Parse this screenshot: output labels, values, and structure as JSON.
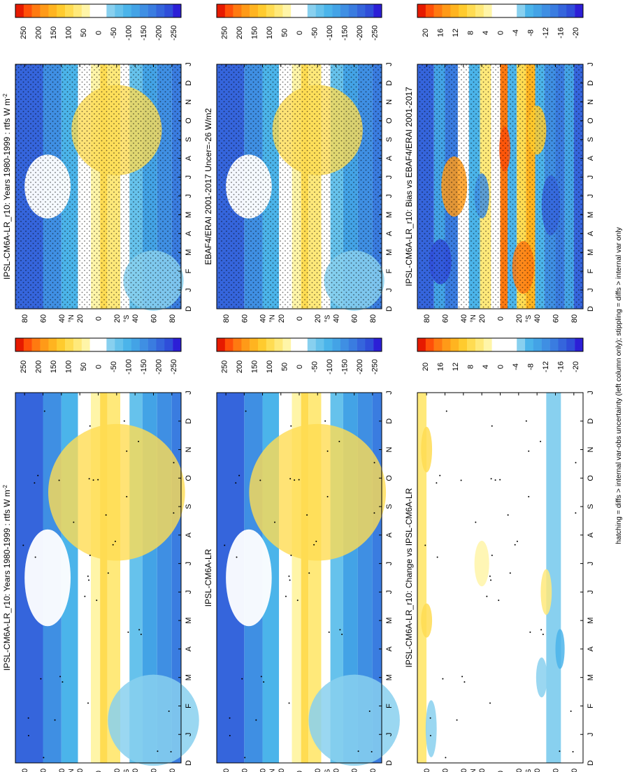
{
  "figure": {
    "footnote": "hatching = diffs > internal var-obs uncertainty (left column only); stippling = diffs > internal var only"
  },
  "colors": {
    "abs_scale": [
      "#2c1fd6",
      "#2f4ed9",
      "#3565dc",
      "#3a7ce0",
      "#3f8fe3",
      "#43a3e6",
      "#4bb4ea",
      "#66c2ec",
      "#88d0ef",
      "#ffffff",
      "#ffffff",
      "#fff5a8",
      "#ffe97a",
      "#ffdc52",
      "#ffcb2e",
      "#ffb420",
      "#ff9a18",
      "#ff7a10",
      "#ff5008",
      "#e61a00"
    ],
    "diff_scale": [
      "#2c1fd6",
      "#2f4ed9",
      "#3565dc",
      "#3a7ce0",
      "#3f8fe3",
      "#43a3e6",
      "#4bb4ea",
      "#88d0ef",
      "#ffffff",
      "#ffffff",
      "#ffffff",
      "#fff5a8",
      "#ffe97a",
      "#ffdc52",
      "#ffcb2e",
      "#ffb420",
      "#ff9a18",
      "#ff7a10",
      "#ff5008",
      "#e61a00"
    ]
  },
  "chart_data": [
    {
      "id": "top-left",
      "type": "heatmap",
      "title": "IPSL-CM6A-LR_r10: Years 1980-1999 : rtfs W m",
      "title_sup": "-2",
      "scale": "abs",
      "stipple": "dense",
      "x_ticks": [
        "D",
        "J",
        "F",
        "M",
        "A",
        "M",
        "J",
        "J",
        "A",
        "S",
        "O",
        "N",
        "D",
        "J"
      ],
      "y_ticks": [
        "80",
        "60",
        "40",
        "20",
        "0",
        "20",
        "40",
        "60",
        "80"
      ],
      "y_hemisphere_labels": [
        "N",
        "S"
      ],
      "y_range": [
        -90,
        90
      ],
      "colorbar_ticks": [
        "250",
        "200",
        "150",
        "100",
        "50",
        "0",
        "-50",
        "-100",
        "-150",
        "-200",
        "-250"
      ]
    },
    {
      "id": "top-right",
      "type": "heatmap",
      "title": "IPSL-CM6A-LR_r10: Years 1980-1999 : rtfs W m",
      "title_sup": "-2",
      "scale": "abs",
      "stipple": "sparse",
      "x_ticks": [
        "D",
        "J",
        "F",
        "M",
        "A",
        "M",
        "J",
        "J",
        "A",
        "S",
        "O",
        "N",
        "D",
        "J"
      ],
      "y_ticks": [
        "80",
        "60",
        "40",
        "20",
        "0",
        "20",
        "40",
        "60",
        "80"
      ],
      "y_hemisphere_labels": [
        "N",
        "S"
      ],
      "y_range": [
        -90,
        90
      ],
      "colorbar_ticks": [
        "250",
        "200",
        "150",
        "100",
        "50",
        "0",
        "-50",
        "-100",
        "-150",
        "-200",
        "-250"
      ]
    },
    {
      "id": "mid-left",
      "type": "heatmap",
      "title": "EBAF4/ERAI 2001-2017 Uncer=-26 W/m2",
      "title_sup": "",
      "scale": "abs",
      "stipple": "dense",
      "x_ticks": [
        "D",
        "J",
        "F",
        "M",
        "A",
        "M",
        "J",
        "J",
        "A",
        "S",
        "O",
        "N",
        "D",
        "J"
      ],
      "y_ticks": [
        "80",
        "60",
        "40",
        "20",
        "0",
        "20",
        "40",
        "60",
        "80"
      ],
      "y_hemisphere_labels": [
        "N",
        "S"
      ],
      "y_range": [
        -90,
        90
      ],
      "colorbar_ticks": [
        "250",
        "200",
        "150",
        "100",
        "50",
        "0",
        "-50",
        "-100",
        "-150",
        "-200",
        "-250"
      ]
    },
    {
      "id": "mid-right",
      "type": "heatmap",
      "title": "IPSL-CM6A-LR",
      "title_sup": "",
      "scale": "abs",
      "stipple": "sparse",
      "x_ticks": [
        "D",
        "J",
        "F",
        "M",
        "A",
        "M",
        "J",
        "J",
        "A",
        "S",
        "O",
        "N",
        "D",
        "J"
      ],
      "y_ticks": [
        "80",
        "60",
        "40",
        "20",
        "0",
        "20",
        "40",
        "60",
        "80"
      ],
      "y_hemisphere_labels": [
        "N",
        "S"
      ],
      "y_range": [
        -90,
        90
      ],
      "colorbar_ticks": [
        "250",
        "200",
        "150",
        "100",
        "50",
        "0",
        "-50",
        "-100",
        "-150",
        "-200",
        "-250"
      ]
    },
    {
      "id": "bot-left",
      "type": "heatmap",
      "title": "IPSL-CM6A-LR_r10: Bias vs EBAF4/ERAI 2001-2017",
      "title_sup": "",
      "scale": "diff",
      "stipple": "dense",
      "x_ticks": [
        "D",
        "J",
        "F",
        "M",
        "A",
        "M",
        "J",
        "J",
        "A",
        "S",
        "O",
        "N",
        "D",
        "J"
      ],
      "y_ticks": [
        "80",
        "60",
        "40",
        "20",
        "0",
        "20",
        "40",
        "60",
        "80"
      ],
      "y_hemisphere_labels": [
        "N",
        "S"
      ],
      "y_range": [
        -90,
        90
      ],
      "colorbar_ticks": [
        "20",
        "16",
        "12",
        "8",
        "4",
        "0",
        "-4",
        "-8",
        "-12",
        "-16",
        "-20"
      ]
    },
    {
      "id": "bot-right",
      "type": "heatmap",
      "title": "IPSL-CM6A-LR_r10: Change vs IPSL-CM6A-LR",
      "title_sup": "",
      "scale": "diff",
      "stipple": "sparse",
      "x_ticks": [
        "D",
        "J",
        "F",
        "M",
        "A",
        "M",
        "J",
        "J",
        "A",
        "S",
        "O",
        "N",
        "D",
        "J"
      ],
      "y_ticks": [
        "80",
        "60",
        "40",
        "20",
        "0",
        "20",
        "40",
        "60",
        "80"
      ],
      "y_hemisphere_labels": [
        "N",
        "S"
      ],
      "y_range": [
        -90,
        90
      ],
      "colorbar_ticks": [
        "20",
        "16",
        "12",
        "8",
        "4",
        "0",
        "-4",
        "-8",
        "-12",
        "-16",
        "-20"
      ]
    }
  ]
}
